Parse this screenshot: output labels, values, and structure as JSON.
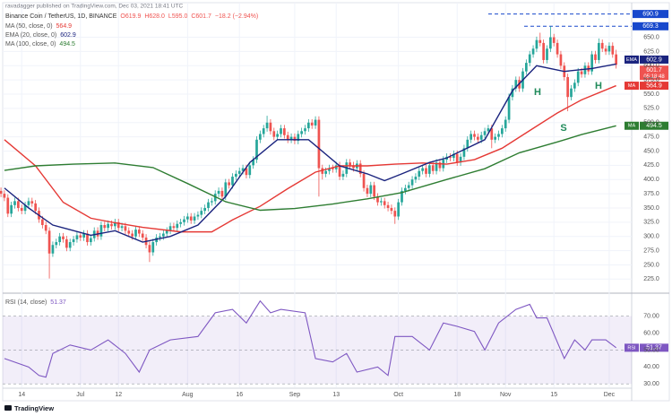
{
  "chart_data": {
    "type": "candlestick",
    "header": "ravadagger published on TradingView.com, Dec 03, 2021 18:41 UTC",
    "title": "Binance Coin / TetherUS, 1D, BINANCE",
    "last_value_labels": [
      "O619.9",
      "H628.0",
      "L595.0",
      "C601.7"
    ],
    "change": "−18.2 (−2.94%)",
    "current_time": "05:18:48",
    "up_color": "#26a69a",
    "down_color": "#ef5350",
    "grid": true,
    "ohlc": [
      [
        380,
        386,
        369,
        375
      ],
      [
        375,
        381,
        362,
        368
      ],
      [
        368,
        374,
        334,
        340
      ],
      [
        340,
        361,
        334,
        355
      ],
      [
        355,
        368,
        349,
        362
      ],
      [
        362,
        368,
        344,
        350
      ],
      [
        350,
        356,
        339,
        345
      ],
      [
        345,
        361,
        339,
        355
      ],
      [
        355,
        368,
        349,
        362
      ],
      [
        362,
        368,
        352,
        358
      ],
      [
        358,
        364,
        339,
        345
      ],
      [
        345,
        351,
        324,
        330
      ],
      [
        330,
        336,
        314,
        320
      ],
      [
        320,
        326,
        304,
        310
      ],
      [
        310,
        316,
        226,
        270
      ],
      [
        270,
        291,
        264,
        285
      ],
      [
        285,
        296,
        279,
        290
      ],
      [
        290,
        306,
        284,
        300
      ],
      [
        300,
        306,
        289,
        295
      ],
      [
        295,
        301,
        274,
        280
      ],
      [
        280,
        296,
        274,
        290
      ],
      [
        290,
        301,
        284,
        295
      ],
      [
        295,
        308,
        289,
        302
      ],
      [
        302,
        308,
        292,
        298
      ],
      [
        298,
        311,
        292,
        305
      ],
      [
        305,
        311,
        284,
        290
      ],
      [
        290,
        303,
        284,
        297
      ],
      [
        297,
        316,
        291,
        310
      ],
      [
        310,
        316,
        294,
        300
      ],
      [
        300,
        326,
        294,
        320
      ],
      [
        320,
        326,
        309,
        315
      ],
      [
        315,
        328,
        309,
        322
      ],
      [
        322,
        328,
        312,
        318
      ],
      [
        318,
        331,
        312,
        325
      ],
      [
        325,
        331,
        309,
        315
      ],
      [
        315,
        324,
        309,
        318
      ],
      [
        318,
        324,
        304,
        310
      ],
      [
        310,
        316,
        299,
        305
      ],
      [
        305,
        311,
        294,
        300
      ],
      [
        300,
        318,
        294,
        312
      ],
      [
        312,
        318,
        299,
        305
      ],
      [
        305,
        311,
        292,
        298
      ],
      [
        298,
        304,
        279,
        285
      ],
      [
        285,
        291,
        255,
        272
      ],
      [
        272,
        296,
        266,
        290
      ],
      [
        290,
        304,
        284,
        298
      ],
      [
        298,
        306,
        292,
        300
      ],
      [
        300,
        311,
        294,
        305
      ],
      [
        305,
        316,
        299,
        310
      ],
      [
        310,
        324,
        304,
        318
      ],
      [
        318,
        324,
        309,
        315
      ],
      [
        315,
        328,
        309,
        322
      ],
      [
        322,
        331,
        316,
        325
      ],
      [
        325,
        336,
        319,
        330
      ],
      [
        330,
        341,
        324,
        335
      ],
      [
        335,
        341,
        322,
        328
      ],
      [
        328,
        341,
        322,
        335
      ],
      [
        335,
        344,
        329,
        338
      ],
      [
        338,
        351,
        332,
        345
      ],
      [
        345,
        356,
        339,
        350
      ],
      [
        350,
        366,
        344,
        360
      ],
      [
        360,
        368,
        354,
        362
      ],
      [
        362,
        381,
        356,
        375
      ],
      [
        375,
        386,
        369,
        380
      ],
      [
        380,
        386,
        364,
        370
      ],
      [
        370,
        401,
        364,
        395
      ],
      [
        395,
        401,
        384,
        390
      ],
      [
        390,
        411,
        384,
        405
      ],
      [
        405,
        416,
        399,
        410
      ],
      [
        410,
        421,
        404,
        415
      ],
      [
        415,
        426,
        409,
        420
      ],
      [
        420,
        426,
        402,
        408
      ],
      [
        408,
        431,
        402,
        425
      ],
      [
        425,
        441,
        419,
        435
      ],
      [
        435,
        476,
        429,
        470
      ],
      [
        470,
        486,
        464,
        480
      ],
      [
        480,
        496,
        474,
        490
      ],
      [
        490,
        512,
        484,
        500
      ],
      [
        500,
        506,
        479,
        485
      ],
      [
        485,
        491,
        469,
        475
      ],
      [
        475,
        486,
        469,
        480
      ],
      [
        480,
        496,
        474,
        490
      ],
      [
        490,
        496,
        472,
        478
      ],
      [
        478,
        484,
        464,
        470
      ],
      [
        470,
        481,
        464,
        475
      ],
      [
        475,
        481,
        462,
        468
      ],
      [
        468,
        486,
        462,
        480
      ],
      [
        480,
        491,
        474,
        485
      ],
      [
        485,
        496,
        479,
        490
      ],
      [
        490,
        506,
        484,
        500
      ],
      [
        500,
        506,
        489,
        495
      ],
      [
        495,
        511,
        489,
        505
      ],
      [
        505,
        511,
        370,
        420
      ],
      [
        420,
        426,
        400,
        410
      ],
      [
        410,
        421,
        404,
        415
      ],
      [
        415,
        426,
        409,
        420
      ],
      [
        420,
        426,
        412,
        418
      ],
      [
        418,
        431,
        412,
        425
      ],
      [
        425,
        431,
        399,
        405
      ],
      [
        405,
        416,
        399,
        410
      ],
      [
        410,
        436,
        404,
        430
      ],
      [
        430,
        436,
        419,
        425
      ],
      [
        425,
        431,
        414,
        420
      ],
      [
        420,
        434,
        414,
        428
      ],
      [
        428,
        434,
        404,
        410
      ],
      [
        410,
        416,
        379,
        385
      ],
      [
        385,
        391,
        369,
        375
      ],
      [
        375,
        396,
        369,
        390
      ],
      [
        390,
        396,
        364,
        370
      ],
      [
        370,
        376,
        354,
        360
      ],
      [
        360,
        368,
        354,
        362
      ],
      [
        362,
        368,
        349,
        355
      ],
      [
        355,
        361,
        344,
        350
      ],
      [
        350,
        356,
        339,
        345
      ],
      [
        345,
        351,
        322,
        335
      ],
      [
        335,
        366,
        329,
        360
      ],
      [
        360,
        386,
        354,
        380
      ],
      [
        380,
        391,
        374,
        385
      ],
      [
        385,
        396,
        379,
        390
      ],
      [
        390,
        406,
        384,
        400
      ],
      [
        400,
        411,
        394,
        405
      ],
      [
        405,
        421,
        399,
        415
      ],
      [
        415,
        426,
        409,
        420
      ],
      [
        420,
        426,
        404,
        410
      ],
      [
        410,
        431,
        404,
        425
      ],
      [
        425,
        431,
        409,
        415
      ],
      [
        415,
        436,
        409,
        430
      ],
      [
        430,
        436,
        414,
        420
      ],
      [
        420,
        441,
        414,
        435
      ],
      [
        435,
        446,
        429,
        440
      ],
      [
        440,
        446,
        432,
        438
      ],
      [
        438,
        451,
        432,
        445
      ],
      [
        445,
        451,
        424,
        430
      ],
      [
        430,
        446,
        424,
        440
      ],
      [
        440,
        461,
        434,
        455
      ],
      [
        455,
        476,
        449,
        470
      ],
      [
        470,
        486,
        464,
        480
      ],
      [
        480,
        486,
        469,
        475
      ],
      [
        475,
        481,
        464,
        470
      ],
      [
        470,
        484,
        464,
        478
      ],
      [
        478,
        491,
        472,
        485
      ],
      [
        485,
        496,
        479,
        490
      ],
      [
        490,
        496,
        455,
        470
      ],
      [
        470,
        481,
        464,
        475
      ],
      [
        475,
        486,
        469,
        480
      ],
      [
        480,
        496,
        474,
        490
      ],
      [
        490,
        511,
        484,
        505
      ],
      [
        505,
        551,
        499,
        545
      ],
      [
        545,
        566,
        539,
        560
      ],
      [
        560,
        581,
        554,
        575
      ],
      [
        575,
        581,
        554,
        560
      ],
      [
        560,
        596,
        554,
        590
      ],
      [
        590,
        611,
        584,
        605
      ],
      [
        605,
        626,
        599,
        620
      ],
      [
        620,
        636,
        614,
        630
      ],
      [
        630,
        651,
        624,
        645
      ],
      [
        645,
        658,
        634,
        640
      ],
      [
        640,
        646,
        604,
        610
      ],
      [
        610,
        636,
        604,
        630
      ],
      [
        630,
        669.3,
        624,
        650
      ],
      [
        650,
        656,
        634,
        640
      ],
      [
        640,
        646,
        614,
        620
      ],
      [
        620,
        626,
        594,
        600
      ],
      [
        600,
        606,
        574,
        580
      ],
      [
        580,
        586,
        520,
        545
      ],
      [
        545,
        566,
        539,
        560
      ],
      [
        560,
        576,
        554,
        570
      ],
      [
        570,
        596,
        564,
        590
      ],
      [
        590,
        596,
        579,
        585
      ],
      [
        585,
        606,
        579,
        600
      ],
      [
        600,
        606,
        584,
        590
      ],
      [
        590,
        626,
        584,
        620
      ],
      [
        620,
        626,
        604,
        610
      ],
      [
        610,
        648,
        604,
        640
      ],
      [
        640,
        646,
        624,
        630
      ],
      [
        630,
        636,
        619,
        625
      ],
      [
        625,
        641,
        619,
        635
      ],
      [
        635,
        641,
        614,
        619.9
      ],
      [
        619.9,
        628,
        595,
        601.7
      ]
    ],
    "xlim": [
      0.5,
      182.5
    ],
    "xticks": [
      {
        "value": 6,
        "label": "14"
      },
      {
        "value": 23,
        "label": "Jul"
      },
      {
        "value": 34,
        "label": "12"
      },
      {
        "value": 54,
        "label": "Aug"
      },
      {
        "value": 69,
        "label": "16"
      },
      {
        "value": 85,
        "label": "Sep"
      },
      {
        "value": 97,
        "label": "13"
      },
      {
        "value": 115,
        "label": "Oct"
      },
      {
        "value": 132,
        "label": "18"
      },
      {
        "value": 146,
        "label": "Nov"
      },
      {
        "value": 160,
        "label": "15"
      },
      {
        "value": 176,
        "label": "Dec"
      }
    ],
    "ylim": [
      205,
      695
    ],
    "yticks": [
      {
        "value": 225,
        "label": "225.0"
      },
      {
        "value": 250,
        "label": "250.0"
      },
      {
        "value": 275,
        "label": "275.0"
      },
      {
        "value": 300,
        "label": "300.0"
      },
      {
        "value": 325,
        "label": "325.0"
      },
      {
        "value": 350,
        "label": "350.0"
      },
      {
        "value": 375,
        "label": "375.0"
      },
      {
        "value": 400,
        "label": "400.0"
      },
      {
        "value": 425,
        "label": "425.0"
      },
      {
        "value": 450,
        "label": "450.0"
      },
      {
        "value": 475,
        "label": "475.0"
      },
      {
        "value": 500,
        "label": "500.0"
      },
      {
        "value": 525,
        "label": "525.0"
      },
      {
        "value": 550,
        "label": "550.0"
      },
      {
        "value": 575,
        "label": "575.0"
      },
      {
        "value": 600,
        "label": "600.0"
      },
      {
        "value": 625,
        "label": "625.0"
      },
      {
        "value": 650,
        "label": "650.0"
      }
    ],
    "hlines": {
      "values": [
        690.9,
        669.3
      ],
      "color": "#1848cc"
    },
    "series": [
      {
        "name": "MA (50, close, 0)",
        "short": "MA",
        "color": "#e53935",
        "x": [
          1,
          10,
          18,
          26,
          33,
          41,
          52,
          61,
          67,
          75,
          83,
          91,
          98,
          106,
          114,
          122,
          129,
          137,
          145,
          153,
          161,
          168,
          178
        ],
        "values": [
          470,
          424,
          360,
          332,
          324,
          316,
          308,
          308,
          329,
          353,
          384,
          413,
          424,
          424,
          427,
          429,
          427,
          435,
          455,
          486,
          517,
          540,
          564.9
        ]
      },
      {
        "name": "EMA (20, close, 0)",
        "short": "EMA",
        "color": "#1a237e",
        "x": [
          1,
          8,
          15,
          26,
          33,
          41,
          49,
          57,
          65,
          72,
          80,
          89,
          98,
          106,
          111,
          116,
          124,
          129,
          140,
          148,
          155,
          163,
          171,
          178
        ],
        "values": [
          385,
          350,
          320,
          302,
          310,
          290,
          300,
          320,
          370,
          430,
          470,
          470,
          424,
          410,
          398,
          410,
          430,
          438,
          470,
          556,
          600,
          590,
          595,
          602.9
        ]
      },
      {
        "name": "MA (100, close, 0)",
        "short": "MA",
        "color": "#2e7d32",
        "x": [
          1,
          10,
          21,
          33,
          44,
          54,
          65,
          75,
          85,
          96,
          106,
          116,
          129,
          140,
          150,
          161,
          168,
          178
        ],
        "values": [
          416,
          424,
          427,
          429,
          421,
          393,
          361,
          346,
          349,
          357,
          366,
          377,
          400,
          419,
          447,
          466,
          479,
          494.5
        ]
      }
    ],
    "annotations": [
      "H",
      "H",
      "S"
    ],
    "annotation_color": "#1f8a5a",
    "rsi": {
      "name": "RSI (14, close)",
      "short": "RSI",
      "color": "#7e57c2",
      "x": [
        1,
        8,
        11,
        13,
        15,
        20,
        26,
        31,
        36,
        40,
        43,
        49,
        57,
        62,
        67,
        71,
        75,
        78,
        81,
        88,
        91,
        96,
        100,
        103,
        109,
        112,
        114,
        119,
        124,
        128,
        132,
        137,
        140,
        144,
        149,
        153,
        155,
        158,
        163,
        166,
        169,
        171,
        175,
        178
      ],
      "values": [
        45,
        40,
        35,
        34,
        48,
        53,
        50,
        56,
        48,
        37,
        50,
        56,
        58,
        72,
        74,
        66,
        79,
        72,
        74,
        72,
        45,
        43,
        48,
        37,
        40,
        35,
        58,
        58,
        50,
        66,
        64,
        61,
        50,
        66,
        74,
        77,
        69,
        69,
        45,
        56,
        50,
        56,
        56,
        51.37
      ],
      "ylim": [
        28,
        82
      ],
      "yticks": [
        {
          "value": 30,
          "label": "30.00"
        },
        {
          "value": 40,
          "label": "40.00"
        },
        {
          "value": 50,
          "label": "50.00"
        },
        {
          "value": 60,
          "label": "60.00"
        },
        {
          "value": 70,
          "label": "70.00"
        }
      ]
    },
    "footer": "TradingView"
  }
}
